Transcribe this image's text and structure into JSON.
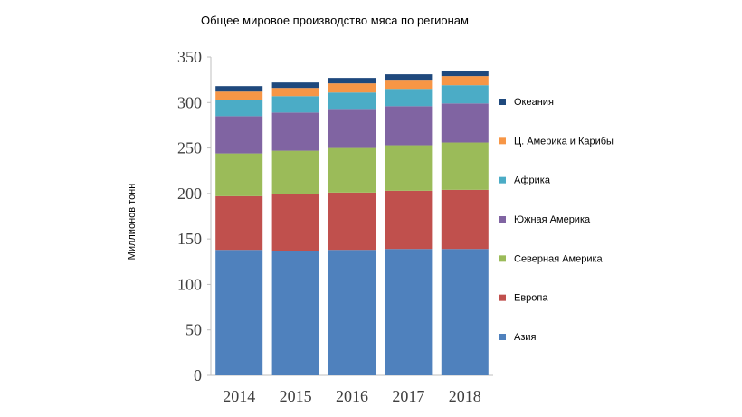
{
  "chart_data": {
    "type": "bar",
    "stacked": true,
    "title": "Общее мировое производство мяса по регионам",
    "xlabel": "",
    "ylabel": "Миллионов тонн",
    "ylim": [
      0,
      350
    ],
    "yticks": [
      0,
      50,
      100,
      150,
      200,
      250,
      300,
      350
    ],
    "grid": false,
    "legend_position": "right",
    "categories": [
      "2014",
      "2015",
      "2016",
      "2017",
      "2018"
    ],
    "series": [
      {
        "name": "Азия",
        "color": "#4f81bd",
        "values": [
          138,
          137,
          138,
          139,
          139
        ]
      },
      {
        "name": "Европа",
        "color": "#c0504d",
        "values": [
          59,
          62,
          63,
          64,
          65
        ]
      },
      {
        "name": "Северная Америка",
        "color": "#9bbb59",
        "values": [
          47,
          48,
          49,
          50,
          52
        ]
      },
      {
        "name": "Южная Америка",
        "color": "#8064a2",
        "values": [
          41,
          42,
          42,
          43,
          43
        ]
      },
      {
        "name": "Африка",
        "color": "#4bacc6",
        "values": [
          18,
          18,
          19,
          19,
          20
        ]
      },
      {
        "name": "Ц. Америка и Карибы",
        "color": "#f79646",
        "values": [
          9,
          9,
          10,
          10,
          10
        ]
      },
      {
        "name": "Океания",
        "color": "#1f497d",
        "values": [
          6,
          6,
          6,
          6,
          6
        ]
      }
    ]
  }
}
